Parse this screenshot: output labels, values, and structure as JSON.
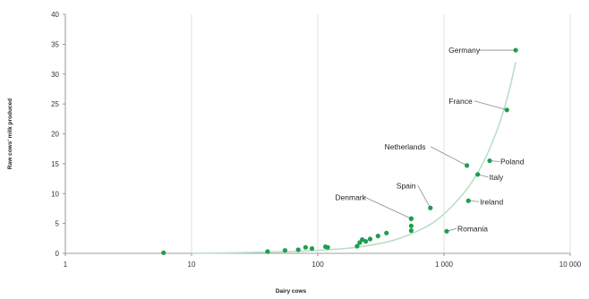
{
  "chart_data": {
    "type": "scatter",
    "title": "",
    "xlabel": "Dairy cows",
    "ylabel": "Raw cows' milk produced",
    "x_scale": "log",
    "xlim": [
      1,
      10000
    ],
    "ylim": [
      0,
      40
    ],
    "x_ticks": [
      1,
      10,
      100,
      1000,
      10000
    ],
    "x_tick_labels": [
      "1",
      "10",
      "100",
      "1 000",
      "10 000"
    ],
    "y_ticks": [
      0,
      5,
      10,
      15,
      20,
      25,
      30,
      35,
      40
    ],
    "y_tick_labels": [
      "0",
      "5",
      "10",
      "15",
      "20",
      "25",
      "30",
      "35",
      "40"
    ],
    "grid": {
      "vertical": true,
      "horizontal": false
    },
    "point_color": "#1e9e50",
    "trend_color": "#b9dfc7",
    "points": [
      {
        "x": 6,
        "y": 0.1
      },
      {
        "x": 40,
        "y": 0.3
      },
      {
        "x": 55,
        "y": 0.5
      },
      {
        "x": 70,
        "y": 0.6
      },
      {
        "x": 80,
        "y": 1.0
      },
      {
        "x": 90,
        "y": 0.8
      },
      {
        "x": 115,
        "y": 1.1
      },
      {
        "x": 120,
        "y": 1.0
      },
      {
        "x": 205,
        "y": 1.2
      },
      {
        "x": 215,
        "y": 1.8
      },
      {
        "x": 225,
        "y": 2.3
      },
      {
        "x": 240,
        "y": 2.0
      },
      {
        "x": 260,
        "y": 2.4
      },
      {
        "x": 300,
        "y": 2.9
      },
      {
        "x": 350,
        "y": 3.4
      },
      {
        "x": 550,
        "y": 3.8
      },
      {
        "x": 550,
        "y": 4.6
      },
      {
        "x": 550,
        "y": 5.8
      },
      {
        "x": 780,
        "y": 7.6,
        "label": "Spain"
      },
      {
        "x": 1050,
        "y": 3.7,
        "label": "Romania"
      },
      {
        "x": 1520,
        "y": 14.7,
        "label": "Netherlands"
      },
      {
        "x": 1560,
        "y": 8.8,
        "label": "Ireland"
      },
      {
        "x": 1850,
        "y": 13.2,
        "label": "Italy"
      },
      {
        "x": 2300,
        "y": 15.5,
        "label": "Poland"
      },
      {
        "x": 3150,
        "y": 24.0,
        "label": "France"
      },
      {
        "x": 3700,
        "y": 34.0,
        "label": "Germany"
      },
      {
        "x": 550,
        "y": 5.8,
        "label": "Denmark"
      }
    ],
    "labels": [
      "Germany",
      "France",
      "Netherlands",
      "Poland",
      "Italy",
      "Spain",
      "Denmark",
      "Ireland",
      "Romania"
    ],
    "trendline": {
      "x": [
        10,
        40,
        100,
        200,
        400,
        700,
        1000,
        1500,
        2000,
        2600,
        3200,
        3700
      ],
      "y": [
        0,
        0.2,
        0.5,
        1.0,
        2.2,
        4.3,
        6.6,
        10.6,
        14.8,
        20.3,
        26.3,
        32.0
      ]
    }
  }
}
